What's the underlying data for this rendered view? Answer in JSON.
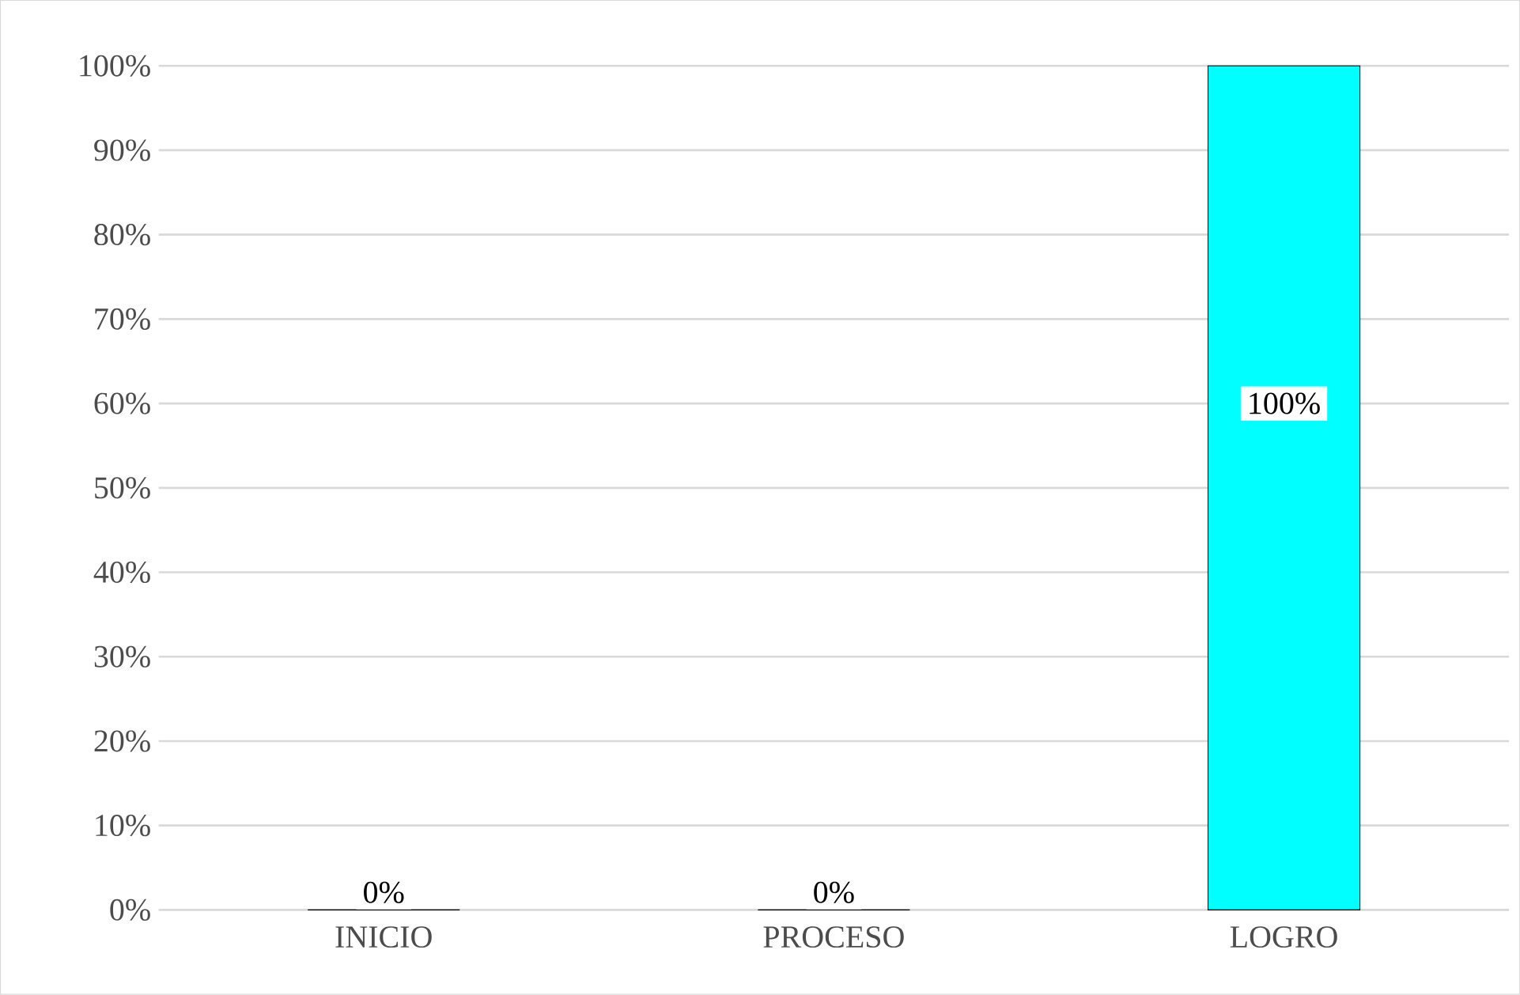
{
  "chart_data": {
    "type": "bar",
    "categories": [
      "INICIO",
      "PROCESO",
      "LOGRO"
    ],
    "values": [
      0,
      0,
      100
    ],
    "colors": [
      "#4cc72a",
      "#4cbf6e",
      "#00ffff"
    ],
    "value_labels": [
      "0%",
      "0%",
      "100%"
    ],
    "ylim": [
      0,
      100
    ],
    "yticks": [
      {
        "value": 0,
        "label": "0%"
      },
      {
        "value": 10,
        "label": "10%"
      },
      {
        "value": 20,
        "label": "20%"
      },
      {
        "value": 30,
        "label": "30%"
      },
      {
        "value": 40,
        "label": "40%"
      },
      {
        "value": 50,
        "label": "50%"
      },
      {
        "value": 60,
        "label": "60%"
      },
      {
        "value": 70,
        "label": "70%"
      },
      {
        "value": 80,
        "label": "80%"
      },
      {
        "value": 90,
        "label": "90%"
      },
      {
        "value": 100,
        "label": "100%"
      }
    ],
    "grid": "y"
  }
}
